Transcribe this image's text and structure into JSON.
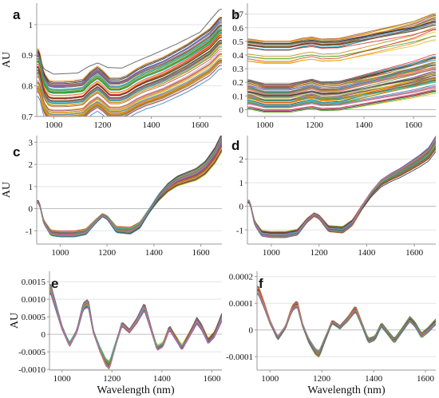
{
  "chart_data": [
    {
      "panel": "a",
      "type": "line",
      "ylabel": "AU",
      "xlabel": "",
      "xlim": [
        930,
        1690
      ],
      "ylim": [
        0.7,
        1.07
      ],
      "xticks": [
        "1000",
        "1200",
        "1400",
        "1600"
      ],
      "xtick_values": [
        1000,
        1200,
        1400,
        1600
      ],
      "yticks": [
        "0.7",
        "0.8",
        "0.9",
        "1"
      ],
      "ytick_values": [
        0.7,
        0.8,
        0.9,
        1.0
      ],
      "grid": "horizontal",
      "legend": "none",
      "n_series": 70,
      "profile": [
        [
          940,
          0.84
        ],
        [
          960,
          0.768
        ],
        [
          980,
          0.745
        ],
        [
          1000,
          0.742
        ],
        [
          1040,
          0.742
        ],
        [
          1080,
          0.744
        ],
        [
          1120,
          0.748
        ],
        [
          1150,
          0.772
        ],
        [
          1180,
          0.788
        ],
        [
          1200,
          0.775
        ],
        [
          1230,
          0.752
        ],
        [
          1270,
          0.752
        ],
        [
          1300,
          0.76
        ],
        [
          1340,
          0.78
        ],
        [
          1380,
          0.795
        ],
        [
          1400,
          0.8
        ],
        [
          1450,
          0.815
        ],
        [
          1500,
          0.835
        ],
        [
          1550,
          0.855
        ],
        [
          1600,
          0.88
        ],
        [
          1640,
          0.9
        ],
        [
          1680,
          0.935
        ]
      ],
      "outlier_profile": [
        [
          940,
          0.895
        ],
        [
          960,
          0.855
        ],
        [
          1000,
          0.838
        ],
        [
          1100,
          0.842
        ],
        [
          1140,
          0.862
        ],
        [
          1180,
          0.875
        ],
        [
          1220,
          0.86
        ],
        [
          1280,
          0.858
        ],
        [
          1340,
          0.88
        ],
        [
          1400,
          0.9
        ],
        [
          1500,
          0.935
        ],
        [
          1600,
          0.975
        ],
        [
          1680,
          1.05
        ]
      ],
      "spread": [
        0.045,
        0.01
      ]
    },
    {
      "panel": "b",
      "type": "line",
      "ylabel": "",
      "xlabel": "",
      "xlim": [
        930,
        1690
      ],
      "ylim": [
        -0.05,
        0.78
      ],
      "xticks": [
        "1000",
        "1200",
        "1400",
        "1600"
      ],
      "xtick_values": [
        1000,
        1200,
        1400,
        1600
      ],
      "yticks": [
        "0",
        "0.1",
        "0.2",
        "0.3",
        "0.4",
        "0.5",
        "0.6",
        "0.7"
      ],
      "ytick_values": [
        0,
        0.1,
        0.2,
        0.3,
        0.4,
        0.5,
        0.6,
        0.7
      ],
      "grid": "horizontal",
      "legend": "none",
      "groups": [
        {
          "n_series": 60,
          "base_range": [
            -0.02,
            0.19
          ],
          "profile": [
            [
              940,
              0.03
            ],
            [
              1000,
              0.0
            ],
            [
              1100,
              0.0
            ],
            [
              1150,
              0.02
            ],
            [
              1190,
              0.035
            ],
            [
              1230,
              0.015
            ],
            [
              1300,
              0.02
            ],
            [
              1400,
              0.06
            ],
            [
              1500,
              0.1
            ],
            [
              1600,
              0.14
            ],
            [
              1680,
              0.18
            ]
          ]
        },
        {
          "n_series": 25,
          "base_range": [
            0.33,
            0.51
          ],
          "profile": [
            [
              940,
              0.015
            ],
            [
              1000,
              0.0
            ],
            [
              1100,
              0.0
            ],
            [
              1150,
              0.02
            ],
            [
              1190,
              0.03
            ],
            [
              1230,
              0.015
            ],
            [
              1300,
              0.02
            ],
            [
              1400,
              0.06
            ],
            [
              1500,
              0.1
            ],
            [
              1600,
              0.14
            ],
            [
              1680,
              0.19
            ]
          ]
        }
      ]
    },
    {
      "panel": "c",
      "type": "line",
      "ylabel": "AU",
      "xlabel": "",
      "xlim": [
        900,
        1690
      ],
      "ylim": [
        -1.6,
        3.3
      ],
      "xticks": [
        "1000",
        "1200",
        "1400",
        "1600"
      ],
      "xtick_values": [
        1000,
        1200,
        1400,
        1600
      ],
      "yticks": [
        "-1",
        "0",
        "1",
        "2",
        "3"
      ],
      "ytick_values": [
        -1,
        0,
        1,
        2,
        3
      ],
      "grid": "horizontal",
      "legend": "none",
      "n_series": 60,
      "profile": [
        [
          910,
          0.3
        ],
        [
          930,
          -0.6
        ],
        [
          960,
          -1.1
        ],
        [
          1000,
          -1.15
        ],
        [
          1060,
          -1.15
        ],
        [
          1110,
          -1.05
        ],
        [
          1150,
          -0.6
        ],
        [
          1180,
          -0.3
        ],
        [
          1200,
          -0.4
        ],
        [
          1240,
          -0.95
        ],
        [
          1300,
          -1.0
        ],
        [
          1340,
          -0.75
        ],
        [
          1380,
          -0.1
        ],
        [
          1420,
          0.5
        ],
        [
          1460,
          0.95
        ],
        [
          1500,
          1.25
        ],
        [
          1540,
          1.4
        ],
        [
          1580,
          1.55
        ],
        [
          1620,
          1.85
        ],
        [
          1660,
          2.4
        ],
        [
          1690,
          3.0
        ]
      ],
      "spread": [
        0.1,
        0.35
      ]
    },
    {
      "panel": "d",
      "type": "line",
      "ylabel": "",
      "xlabel": "",
      "xlim": [
        900,
        1690
      ],
      "ylim": [
        -1.6,
        3.0
      ],
      "xticks": [
        "1000",
        "1200",
        "1400",
        "1600"
      ],
      "xtick_values": [
        1000,
        1200,
        1400,
        1600
      ],
      "yticks": [
        "-1",
        "0",
        "1",
        "2"
      ],
      "ytick_values": [
        -1,
        0,
        1,
        2
      ],
      "grid": "horizontal",
      "legend": "none",
      "n_series": 60,
      "profile": [
        [
          910,
          0.2
        ],
        [
          930,
          -0.7
        ],
        [
          960,
          -1.15
        ],
        [
          1000,
          -1.2
        ],
        [
          1060,
          -1.2
        ],
        [
          1110,
          -1.1
        ],
        [
          1150,
          -0.6
        ],
        [
          1180,
          -0.35
        ],
        [
          1200,
          -0.45
        ],
        [
          1240,
          -0.95
        ],
        [
          1300,
          -1.0
        ],
        [
          1340,
          -0.7
        ],
        [
          1380,
          -0.05
        ],
        [
          1420,
          0.55
        ],
        [
          1460,
          1.0
        ],
        [
          1500,
          1.25
        ],
        [
          1540,
          1.45
        ],
        [
          1580,
          1.7
        ],
        [
          1620,
          1.95
        ],
        [
          1660,
          2.25
        ],
        [
          1690,
          2.7
        ]
      ],
      "spread": [
        0.1,
        0.3
      ]
    },
    {
      "panel": "e",
      "type": "line",
      "ylabel": "AU",
      "xlabel": "Wavelength (nm)",
      "xlim": [
        950,
        1640
      ],
      "ylim": [
        -0.00102,
        0.0018
      ],
      "xticks": [
        "1000",
        "1200",
        "1400",
        "1600"
      ],
      "xtick_values": [
        1000,
        1200,
        1400,
        1600
      ],
      "yticks": [
        "-0.0010",
        "-0.0005",
        "0",
        "0.0005",
        "0.0010",
        "0.0015"
      ],
      "ytick_values": [
        -0.001,
        -0.0005,
        0,
        0.0005,
        0.001,
        0.0015
      ],
      "grid": "horizontal",
      "legend": "none",
      "n_series": 60,
      "profile": [
        [
          955,
          0.0013
        ],
        [
          975,
          0.0008
        ],
        [
          1000,
          0.0002
        ],
        [
          1030,
          -0.0003
        ],
        [
          1060,
          0.0001
        ],
        [
          1085,
          0.0008
        ],
        [
          1105,
          0.0009
        ],
        [
          1125,
          0.0001
        ],
        [
          1150,
          -0.0004
        ],
        [
          1175,
          -0.0008
        ],
        [
          1190,
          -0.0009
        ],
        [
          1210,
          -0.0004
        ],
        [
          1240,
          0.0003
        ],
        [
          1270,
          0.0001
        ],
        [
          1300,
          0.0004
        ],
        [
          1330,
          0.0008
        ],
        [
          1355,
          0.0002
        ],
        [
          1380,
          -0.0004
        ],
        [
          1405,
          -0.0003
        ],
        [
          1430,
          0.0002
        ],
        [
          1455,
          -0.0001
        ],
        [
          1480,
          -0.0004
        ],
        [
          1510,
          0.0
        ],
        [
          1540,
          0.0004
        ],
        [
          1560,
          0.0002
        ],
        [
          1585,
          -0.0002
        ],
        [
          1610,
          0.0
        ],
        [
          1640,
          0.0005
        ]
      ],
      "spread": [
        0.0001,
        0.0001
      ]
    },
    {
      "panel": "f",
      "type": "line",
      "ylabel": "",
      "xlabel": "Wavelength (nm)",
      "xlim": [
        950,
        1640
      ],
      "ylim": [
        -0.00015,
        0.00022
      ],
      "xticks": [
        "1000",
        "1200",
        "1400",
        "1600"
      ],
      "xtick_values": [
        1000,
        1200,
        1400,
        1600
      ],
      "yticks": [
        "-0.0001",
        "0",
        "0.0001",
        "0.0002"
      ],
      "ytick_values": [
        -0.0001,
        0,
        0.0001,
        0.0002
      ],
      "grid": "horizontal",
      "legend": "none",
      "n_series": 60,
      "profile": [
        [
          955,
          0.00015
        ],
        [
          975,
          0.0001
        ],
        [
          1000,
          3e-05
        ],
        [
          1030,
          -3e-05
        ],
        [
          1060,
          1e-05
        ],
        [
          1085,
          8e-05
        ],
        [
          1105,
          0.0001
        ],
        [
          1125,
          2e-05
        ],
        [
          1150,
          -4e-05
        ],
        [
          1175,
          -8e-05
        ],
        [
          1190,
          -9e-05
        ],
        [
          1210,
          -4e-05
        ],
        [
          1240,
          3e-05
        ],
        [
          1270,
          1e-05
        ],
        [
          1300,
          4e-05
        ],
        [
          1330,
          8e-05
        ],
        [
          1355,
          2e-05
        ],
        [
          1380,
          -4e-05
        ],
        [
          1405,
          -3e-05
        ],
        [
          1430,
          2e-05
        ],
        [
          1455,
          -1e-05
        ],
        [
          1480,
          -4e-05
        ],
        [
          1510,
          0.0
        ],
        [
          1540,
          4e-05
        ],
        [
          1560,
          2e-05
        ],
        [
          1585,
          -2e-05
        ],
        [
          1610,
          0.0
        ],
        [
          1640,
          3e-05
        ]
      ],
      "spread": [
        1.2e-05,
        1e-05
      ]
    }
  ],
  "colors": [
    "#1f1f1f",
    "#6b3a1e",
    "#d62728",
    "#ff7f0e",
    "#e6b800",
    "#2ca02c",
    "#17becf",
    "#1f77b4",
    "#9467bd",
    "#8c564b",
    "#e377c2",
    "#7f7f7f",
    "#bcbd22",
    "#4d7a3a",
    "#b8860b",
    "#a0522d"
  ],
  "outlier_color": "#6e6e6e",
  "grid_color": "#e3e3e3",
  "axis_color": "#999999"
}
